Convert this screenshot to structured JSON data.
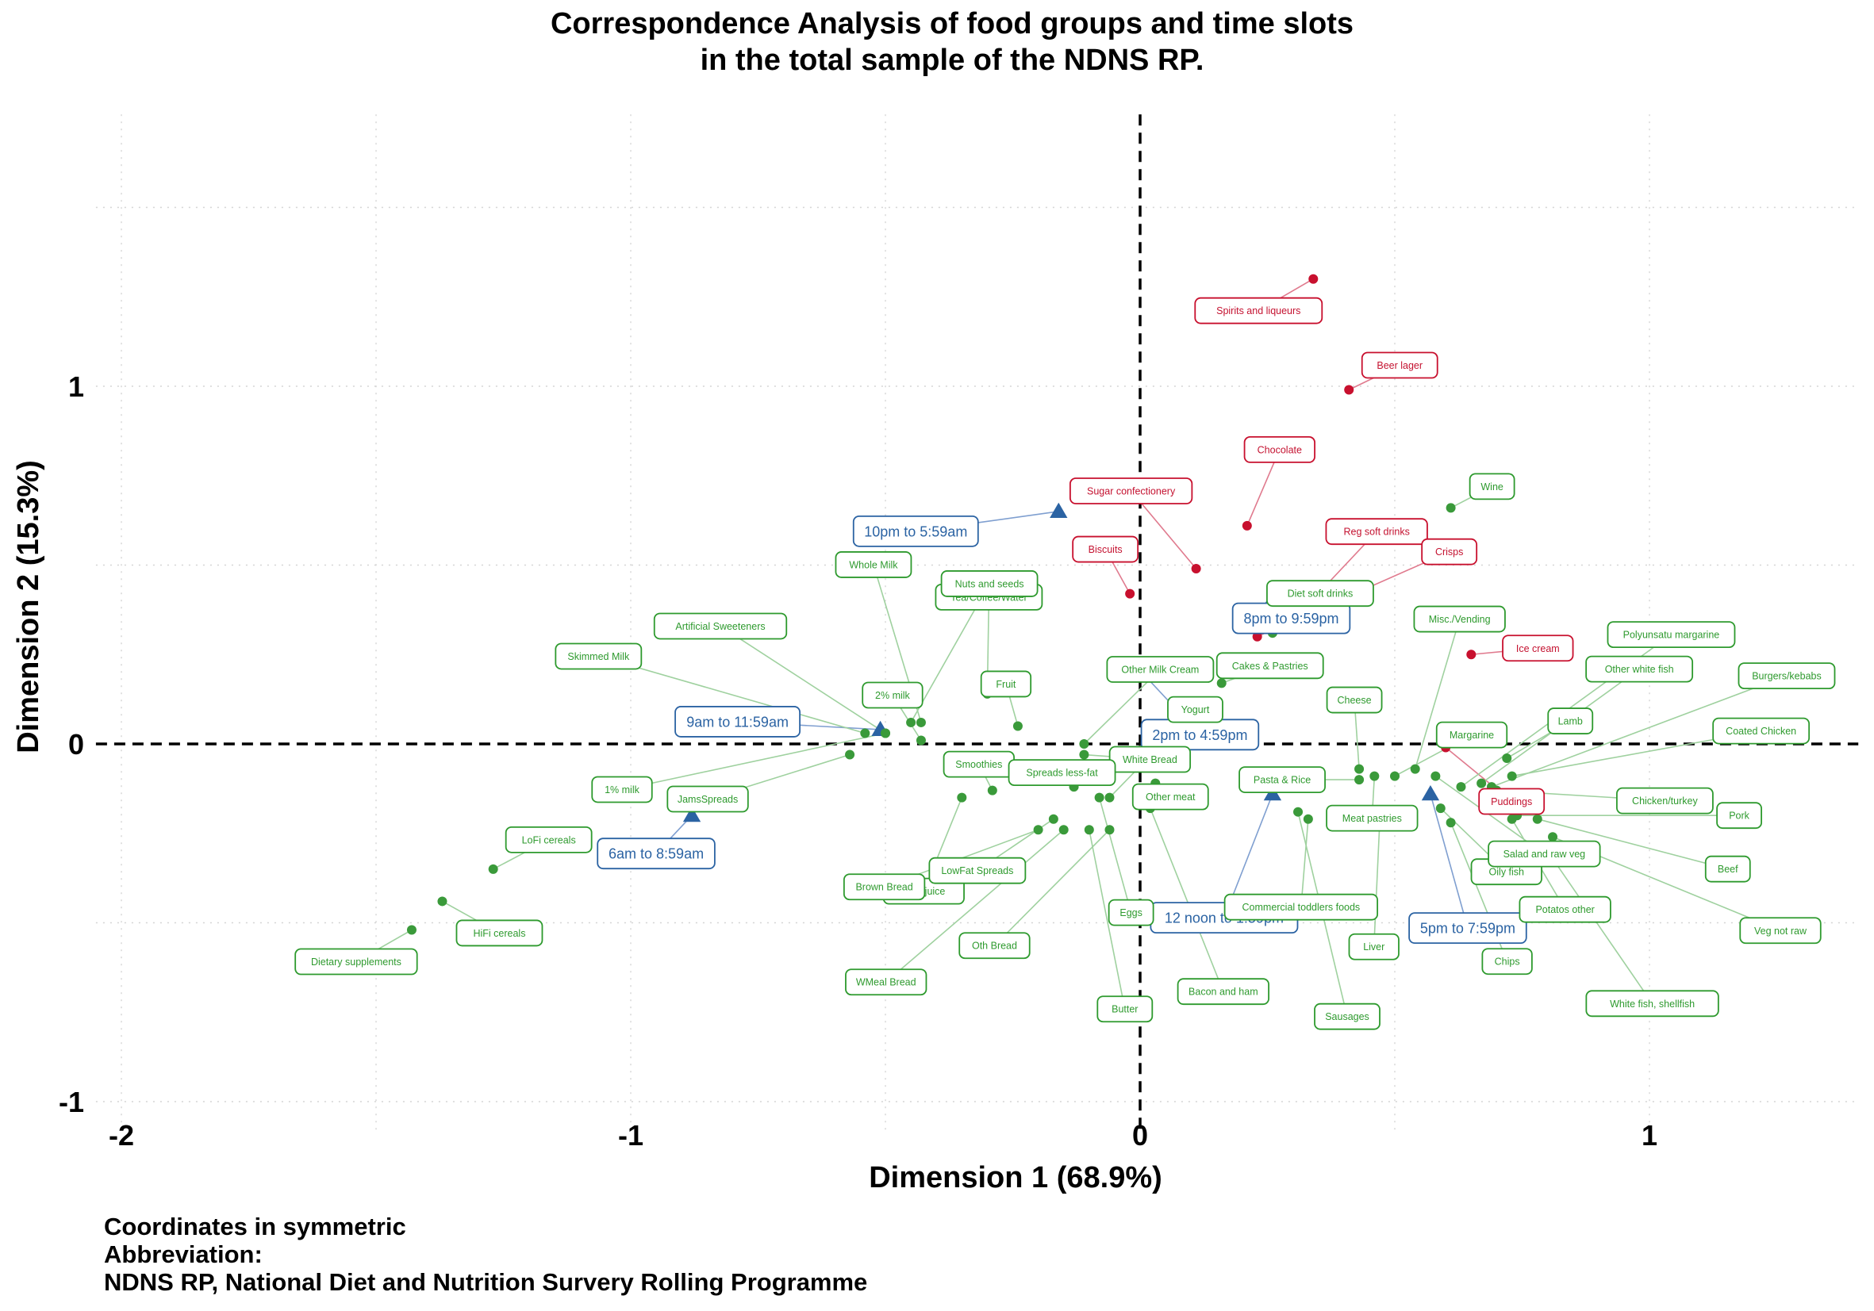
{
  "chart_data": {
    "type": "scatter",
    "title": [
      "Correspondence Analysis of food groups and time slots",
      "in the total sample of the NDNS RP."
    ],
    "xlabel": "Dimension 1 (68.9%)",
    "ylabel": "Dimension 2 (15.3%)",
    "xlim": [
      -2.05,
      1.41
    ],
    "ylim": [
      -1.08,
      1.76
    ],
    "xticks": [
      -2,
      -1,
      0,
      1
    ],
    "yticks": [
      -1,
      0,
      1
    ],
    "grid": true,
    "reference_lines": {
      "x": 0,
      "y": 0,
      "style": "dashed"
    },
    "caption": [
      "Coordinates in symmetric",
      "Abbreviation:",
      "NDNS RP, National Diet and Nutrition Survery Rolling Programme"
    ],
    "colors": {
      "food": "#3a9a3a",
      "food_label": "#2e9a2e",
      "highlighted_food": "#c8102e",
      "time_slot": "#2b63a3"
    },
    "series": [
      {
        "group": "time_slot",
        "marker": "triangle",
        "points": [
          {
            "label": "6am to 8:59am",
            "x": -0.88,
            "y": -0.2
          },
          {
            "label": "9am to 11:59am",
            "x": -0.51,
            "y": 0.04
          },
          {
            "label": "10pm to 5:59am",
            "x": -0.16,
            "y": 0.65
          },
          {
            "label": "2pm to 4:59pm",
            "x": 0.01,
            "y": 0.19
          },
          {
            "label": "8pm to 9:59pm",
            "x": 0.25,
            "y": 0.38
          },
          {
            "label": "12 noon to 1:59pm",
            "x": 0.26,
            "y": -0.14
          },
          {
            "label": "5pm to 7:59pm",
            "x": 0.57,
            "y": -0.14
          }
        ]
      },
      {
        "group": "highlighted_food",
        "marker": "circle",
        "points": [
          {
            "label": "Spirits and liqueurs",
            "x": 0.34,
            "y": 1.3
          },
          {
            "label": "Beer lager",
            "x": 0.41,
            "y": 0.99
          },
          {
            "label": "Sugar confectionery",
            "x": 0.11,
            "y": 0.49
          },
          {
            "label": "Chocolate",
            "x": 0.21,
            "y": 0.61
          },
          {
            "label": "Reg soft drinks",
            "x": 0.29,
            "y": 0.33
          },
          {
            "label": "Crisps",
            "x": 0.23,
            "y": 0.3
          },
          {
            "label": "Biscuits",
            "x": -0.02,
            "y": 0.42
          },
          {
            "label": "Ice cream",
            "x": 0.65,
            "y": 0.25
          },
          {
            "label": "Puddings",
            "x": 0.6,
            "y": -0.01
          }
        ]
      },
      {
        "group": "food",
        "marker": "circle",
        "points": [
          {
            "label": "Wine",
            "x": 0.61,
            "y": 0.66
          },
          {
            "label": "Diet soft drinks",
            "x": 0.26,
            "y": 0.31
          },
          {
            "label": "Misc./Vending",
            "x": 0.54,
            "y": -0.07
          },
          {
            "label": "Polyunsatu margarine",
            "x": 0.63,
            "y": -0.12
          },
          {
            "label": "Other white fish",
            "x": 0.67,
            "y": -0.11
          },
          {
            "label": "Burgers/kebabs",
            "x": 0.69,
            "y": -0.12
          },
          {
            "label": "Coated Chicken",
            "x": 0.73,
            "y": -0.09
          },
          {
            "label": "Lamb",
            "x": 0.72,
            "y": -0.04
          },
          {
            "label": "Chicken/turkey",
            "x": 0.7,
            "y": -0.13
          },
          {
            "label": "Pork",
            "x": 0.74,
            "y": -0.2
          },
          {
            "label": "Beef",
            "x": 0.78,
            "y": -0.21
          },
          {
            "label": "Veg not raw",
            "x": 0.81,
            "y": -0.26
          },
          {
            "label": "White fish, shellfish",
            "x": 0.8,
            "y": -0.3
          },
          {
            "label": "Potatos other",
            "x": 0.73,
            "y": -0.21
          },
          {
            "label": "Chips",
            "x": 0.61,
            "y": -0.22
          },
          {
            "label": "Oily fish",
            "x": 0.59,
            "y": -0.18
          },
          {
            "label": "Salad and raw veg",
            "x": 0.58,
            "y": -0.09
          },
          {
            "label": "Margarine",
            "x": 0.5,
            "y": -0.09
          },
          {
            "label": "Cheese",
            "x": 0.43,
            "y": -0.07
          },
          {
            "label": "Cakes & Pastries",
            "x": 0.16,
            "y": 0.17
          },
          {
            "label": "Pasta & Rice",
            "x": 0.43,
            "y": -0.1
          },
          {
            "label": "Meat pastries",
            "x": 0.46,
            "y": -0.09
          },
          {
            "label": "Commercial toddlers foods",
            "x": 0.33,
            "y": -0.21
          },
          {
            "label": "Liver",
            "x": 0.47,
            "y": -0.23
          },
          {
            "label": "Sausages",
            "x": 0.31,
            "y": -0.19
          },
          {
            "label": "Other meat",
            "x": 0.03,
            "y": -0.11
          },
          {
            "label": "Bacon and ham",
            "x": 0.02,
            "y": -0.18
          },
          {
            "label": "Yogurt",
            "x": -0.06,
            "y": -0.15
          },
          {
            "label": "White Bread",
            "x": -0.11,
            "y": -0.03
          },
          {
            "label": "Other Milk Cream",
            "x": -0.11,
            "y": 0.0
          },
          {
            "label": "Eggs",
            "x": -0.08,
            "y": -0.15
          },
          {
            "label": "Butter",
            "x": -0.1,
            "y": -0.24
          },
          {
            "label": "Fruit",
            "x": -0.24,
            "y": 0.05
          },
          {
            "label": "Tea/Coffee/Water",
            "x": -0.3,
            "y": 0.14
          },
          {
            "label": "Nuts and seeds",
            "x": -0.45,
            "y": 0.06
          },
          {
            "label": "Whole Milk",
            "x": -0.43,
            "y": 0.06
          },
          {
            "label": "Artificial Sweeteners",
            "x": -0.5,
            "y": 0.03
          },
          {
            "label": "Skimmed Milk",
            "x": -0.54,
            "y": 0.03
          },
          {
            "label": "2% milk",
            "x": -0.43,
            "y": 0.01
          },
          {
            "label": "JamsSpreads",
            "x": -0.57,
            "y": -0.03
          },
          {
            "label": "1% milk",
            "x": -0.5,
            "y": 0.03
          },
          {
            "label": "Smoothies",
            "x": -0.29,
            "y": -0.13
          },
          {
            "label": "Spreads less-fat",
            "x": -0.13,
            "y": -0.12
          },
          {
            "label": "Fruit juice",
            "x": -0.35,
            "y": -0.15
          },
          {
            "label": "LowFat Spreads",
            "x": -0.17,
            "y": -0.21
          },
          {
            "label": "Brown Bread",
            "x": -0.2,
            "y": -0.24
          },
          {
            "label": "WMeal Bread",
            "x": -0.15,
            "y": -0.24
          },
          {
            "label": "Oth Bread",
            "x": -0.06,
            "y": -0.24
          },
          {
            "label": "LoFi cereals",
            "x": -1.27,
            "y": -0.35
          },
          {
            "label": "HiFi cereals",
            "x": -1.37,
            "y": -0.44
          },
          {
            "label": "Dietary supplements",
            "x": -1.43,
            "y": -0.52
          }
        ]
      }
    ]
  }
}
